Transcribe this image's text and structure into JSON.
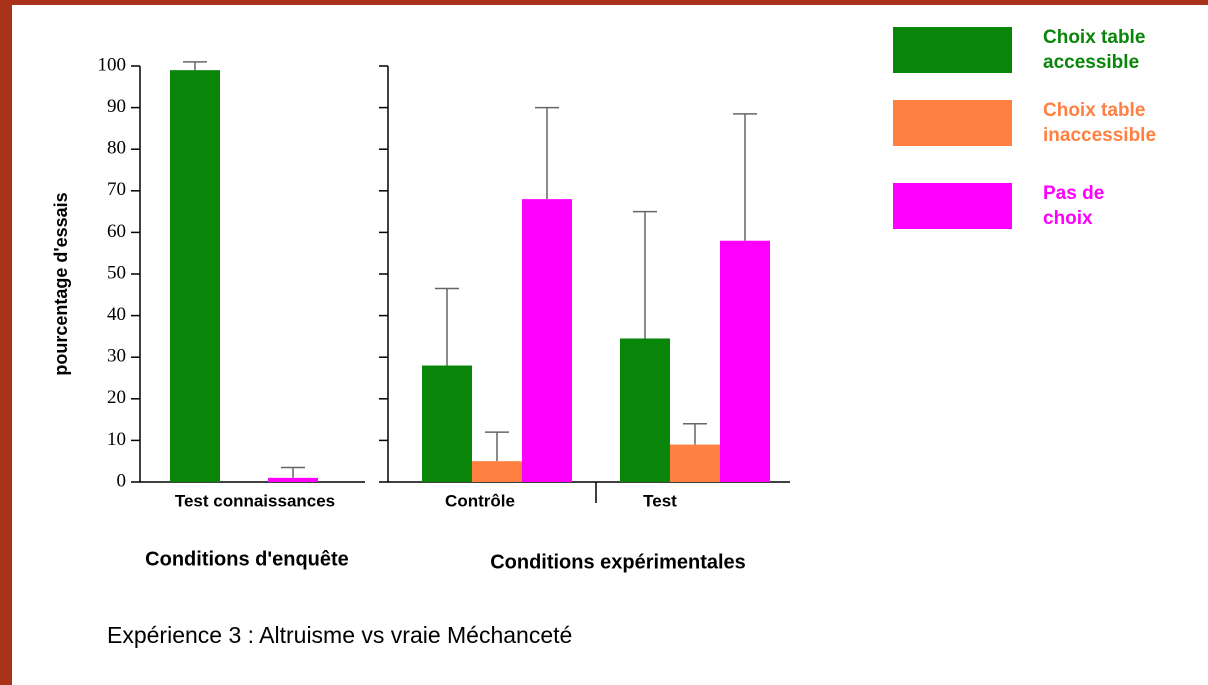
{
  "chart_data": [
    {
      "type": "bar",
      "ylabel": "pourcentage d'essais",
      "xlabel": "Conditions d'enquête",
      "ylim": [
        0,
        100
      ],
      "yticks": [
        0,
        10,
        20,
        30,
        40,
        50,
        60,
        70,
        80,
        90,
        100
      ],
      "categories": [
        "Test connaissances"
      ],
      "series": [
        {
          "name": "Choix table accessible",
          "color": "#098509",
          "values": [
            99
          ],
          "errors": [
            2
          ]
        },
        {
          "name": "Pas de choix",
          "color": "#ff00ff",
          "values": [
            1
          ],
          "errors": [
            2.5
          ]
        }
      ]
    },
    {
      "type": "bar",
      "xlabel": "Conditions expérimentales",
      "ylim": [
        0,
        100
      ],
      "yticks": [
        0,
        10,
        20,
        30,
        40,
        50,
        60,
        70,
        80,
        90,
        100
      ],
      "categories": [
        "Contrôle",
        "Test"
      ],
      "series": [
        {
          "name": "Choix table accessible",
          "color": "#098509",
          "values": [
            28,
            34.5
          ],
          "errors": [
            18.5,
            30.5
          ]
        },
        {
          "name": "Choix table inaccessible",
          "color": "#ff8040",
          "values": [
            5,
            9
          ],
          "errors": [
            7,
            5
          ]
        },
        {
          "name": "Pas de choix",
          "color": "#ff00ff",
          "values": [
            68,
            58
          ],
          "errors": [
            22,
            30.5
          ]
        }
      ]
    }
  ],
  "caption": "Expérience 3 : Altruisme vs vraie Méchanceté"
}
